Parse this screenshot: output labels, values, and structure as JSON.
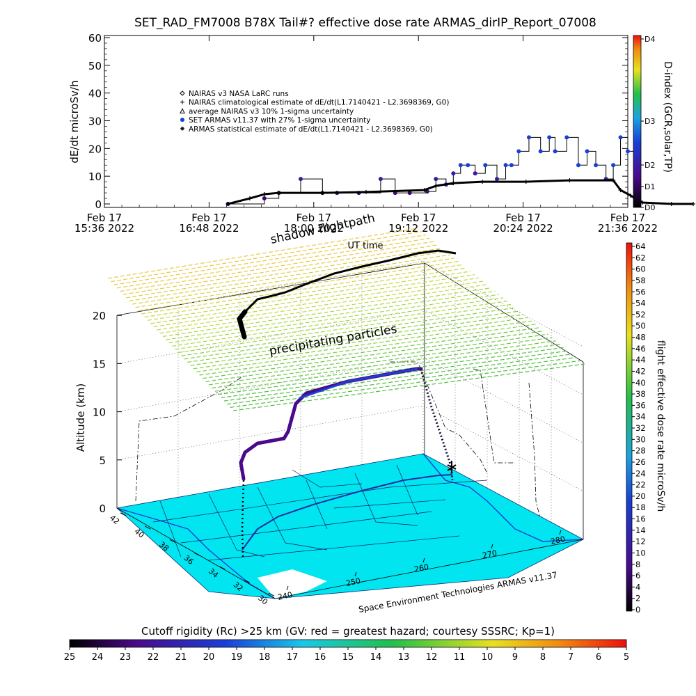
{
  "title": "SET_RAD_FM7008  B78X Tail#? effective dose rate ARMAS_dirIP_Report_07008",
  "chart_data": [
    {
      "type": "scatter",
      "panel": "time-series",
      "ylabel": "dE/dt microSv/h",
      "xlabel": "UT time",
      "ylim": [
        0,
        60
      ],
      "yticks": [
        "0",
        "10",
        "20",
        "30",
        "40",
        "50",
        "60"
      ],
      "xticks": [
        {
          "day": "Feb 17",
          "time": "15:36  2022"
        },
        {
          "day": "Feb 17",
          "time": "16:48  2022"
        },
        {
          "day": "Feb 17",
          "time": "18:00  2022"
        },
        {
          "day": "Feb 17",
          "time": "19:12  2022"
        },
        {
          "day": "Feb 17",
          "time": "20:24  2022"
        },
        {
          "day": "Feb 17",
          "time": "21:36  2022"
        }
      ],
      "legend_position": "upper-left",
      "legend": [
        {
          "symbol": "diamond",
          "label": "NAIRAS v3 NASA LaRC runs"
        },
        {
          "symbol": "plus",
          "label": "NAIRAS climatological estimate of dE/dt(L1.7140421 - L2.3698369, G0)"
        },
        {
          "symbol": "triangle",
          "label": "average NAIRAS v3 10% 1-sigma uncertainty"
        },
        {
          "symbol": "filled-circle",
          "label": "SET ARMAS v11.37 with 27% 1-sigma uncertainty",
          "color": "#1a3fd6"
        },
        {
          "symbol": "asterisk",
          "label": "ARMAS statistical estimate of dE/dt(L1.7140421 - L2.3698369, G0)"
        }
      ],
      "series": [
        {
          "name": "SET ARMAS v11.37 with 27% 1-sigma uncertainty",
          "x_minutes_from_1536": [
            85,
            110,
            120,
            135,
            150,
            160,
            175,
            190,
            200,
            210,
            222,
            228,
            235,
            240,
            245,
            250,
            255,
            262,
            270,
            276,
            280,
            285,
            292,
            300,
            306,
            310,
            318,
            326,
            332,
            338,
            345,
            350,
            355,
            360,
            366
          ],
          "values": [
            0,
            2,
            4,
            9,
            4,
            4,
            4,
            9,
            4,
            4,
            4.5,
            9,
            7,
            11,
            14,
            14,
            11,
            14,
            9,
            14,
            14,
            19,
            24,
            19,
            24,
            19,
            24,
            14,
            19,
            14,
            9,
            14,
            24,
            19,
            5
          ]
        },
        {
          "name": "ARMAS statistical estimate of dE/dt(L1.7140421 - L2.3698369, G0)",
          "x_minutes_from_1536": [
            85,
            100,
            110,
            120,
            150,
            180,
            220,
            228,
            240,
            260,
            290,
            320,
            350,
            355,
            362,
            370,
            390,
            405
          ],
          "values": [
            0,
            2,
            3.5,
            4,
            4,
            4.3,
            5,
            6.5,
            7.5,
            8,
            8,
            8.5,
            8.5,
            5,
            3,
            0.5,
            0,
            0
          ]
        }
      ],
      "colorbar": {
        "label": "D-index (GCR,solar,TP)",
        "ticks": [
          "D0",
          "D1",
          "D2",
          "D3",
          "D4"
        ]
      }
    },
    {
      "type": "scatter3d",
      "panel": "flight-path-3d",
      "zlabel": "Altitude (km)",
      "zticks": [
        "0",
        "5",
        "10",
        "15",
        "20"
      ],
      "lat_ticks": [
        "42",
        "40",
        "38",
        "36",
        "34",
        "32",
        "30"
      ],
      "lon_ticks": [
        "240",
        "250",
        "260",
        "270",
        "280"
      ],
      "annotations": [
        "shadow flightpath",
        "precipitating particles"
      ],
      "credit": "Space Environment Technologies ARMAS v11.37",
      "colorbar": {
        "label": "flight effective dose rate microSv/h",
        "ticks": [
          "0",
          "2",
          "4",
          "6",
          "8",
          "10",
          "12",
          "14",
          "16",
          "18",
          "20",
          "22",
          "24",
          "26",
          "28",
          "30",
          "32",
          "34",
          "36",
          "38",
          "40",
          "42",
          "44",
          "46",
          "48",
          "50",
          "52",
          "54",
          "56",
          "58",
          "60",
          "62",
          "64"
        ]
      },
      "cutoff_colorbar": {
        "label": "Cutoff rigidity (Rc) >25 km (GV: red = greatest hazard; courtesy SSSRC; Kp=1)",
        "ticks": [
          "25",
          "24",
          "23",
          "22",
          "21",
          "20",
          "19",
          "18",
          "17",
          "16",
          "15",
          "14",
          "13",
          "12",
          "11",
          "10",
          "9",
          "8",
          "7",
          "6",
          "5"
        ]
      }
    }
  ]
}
